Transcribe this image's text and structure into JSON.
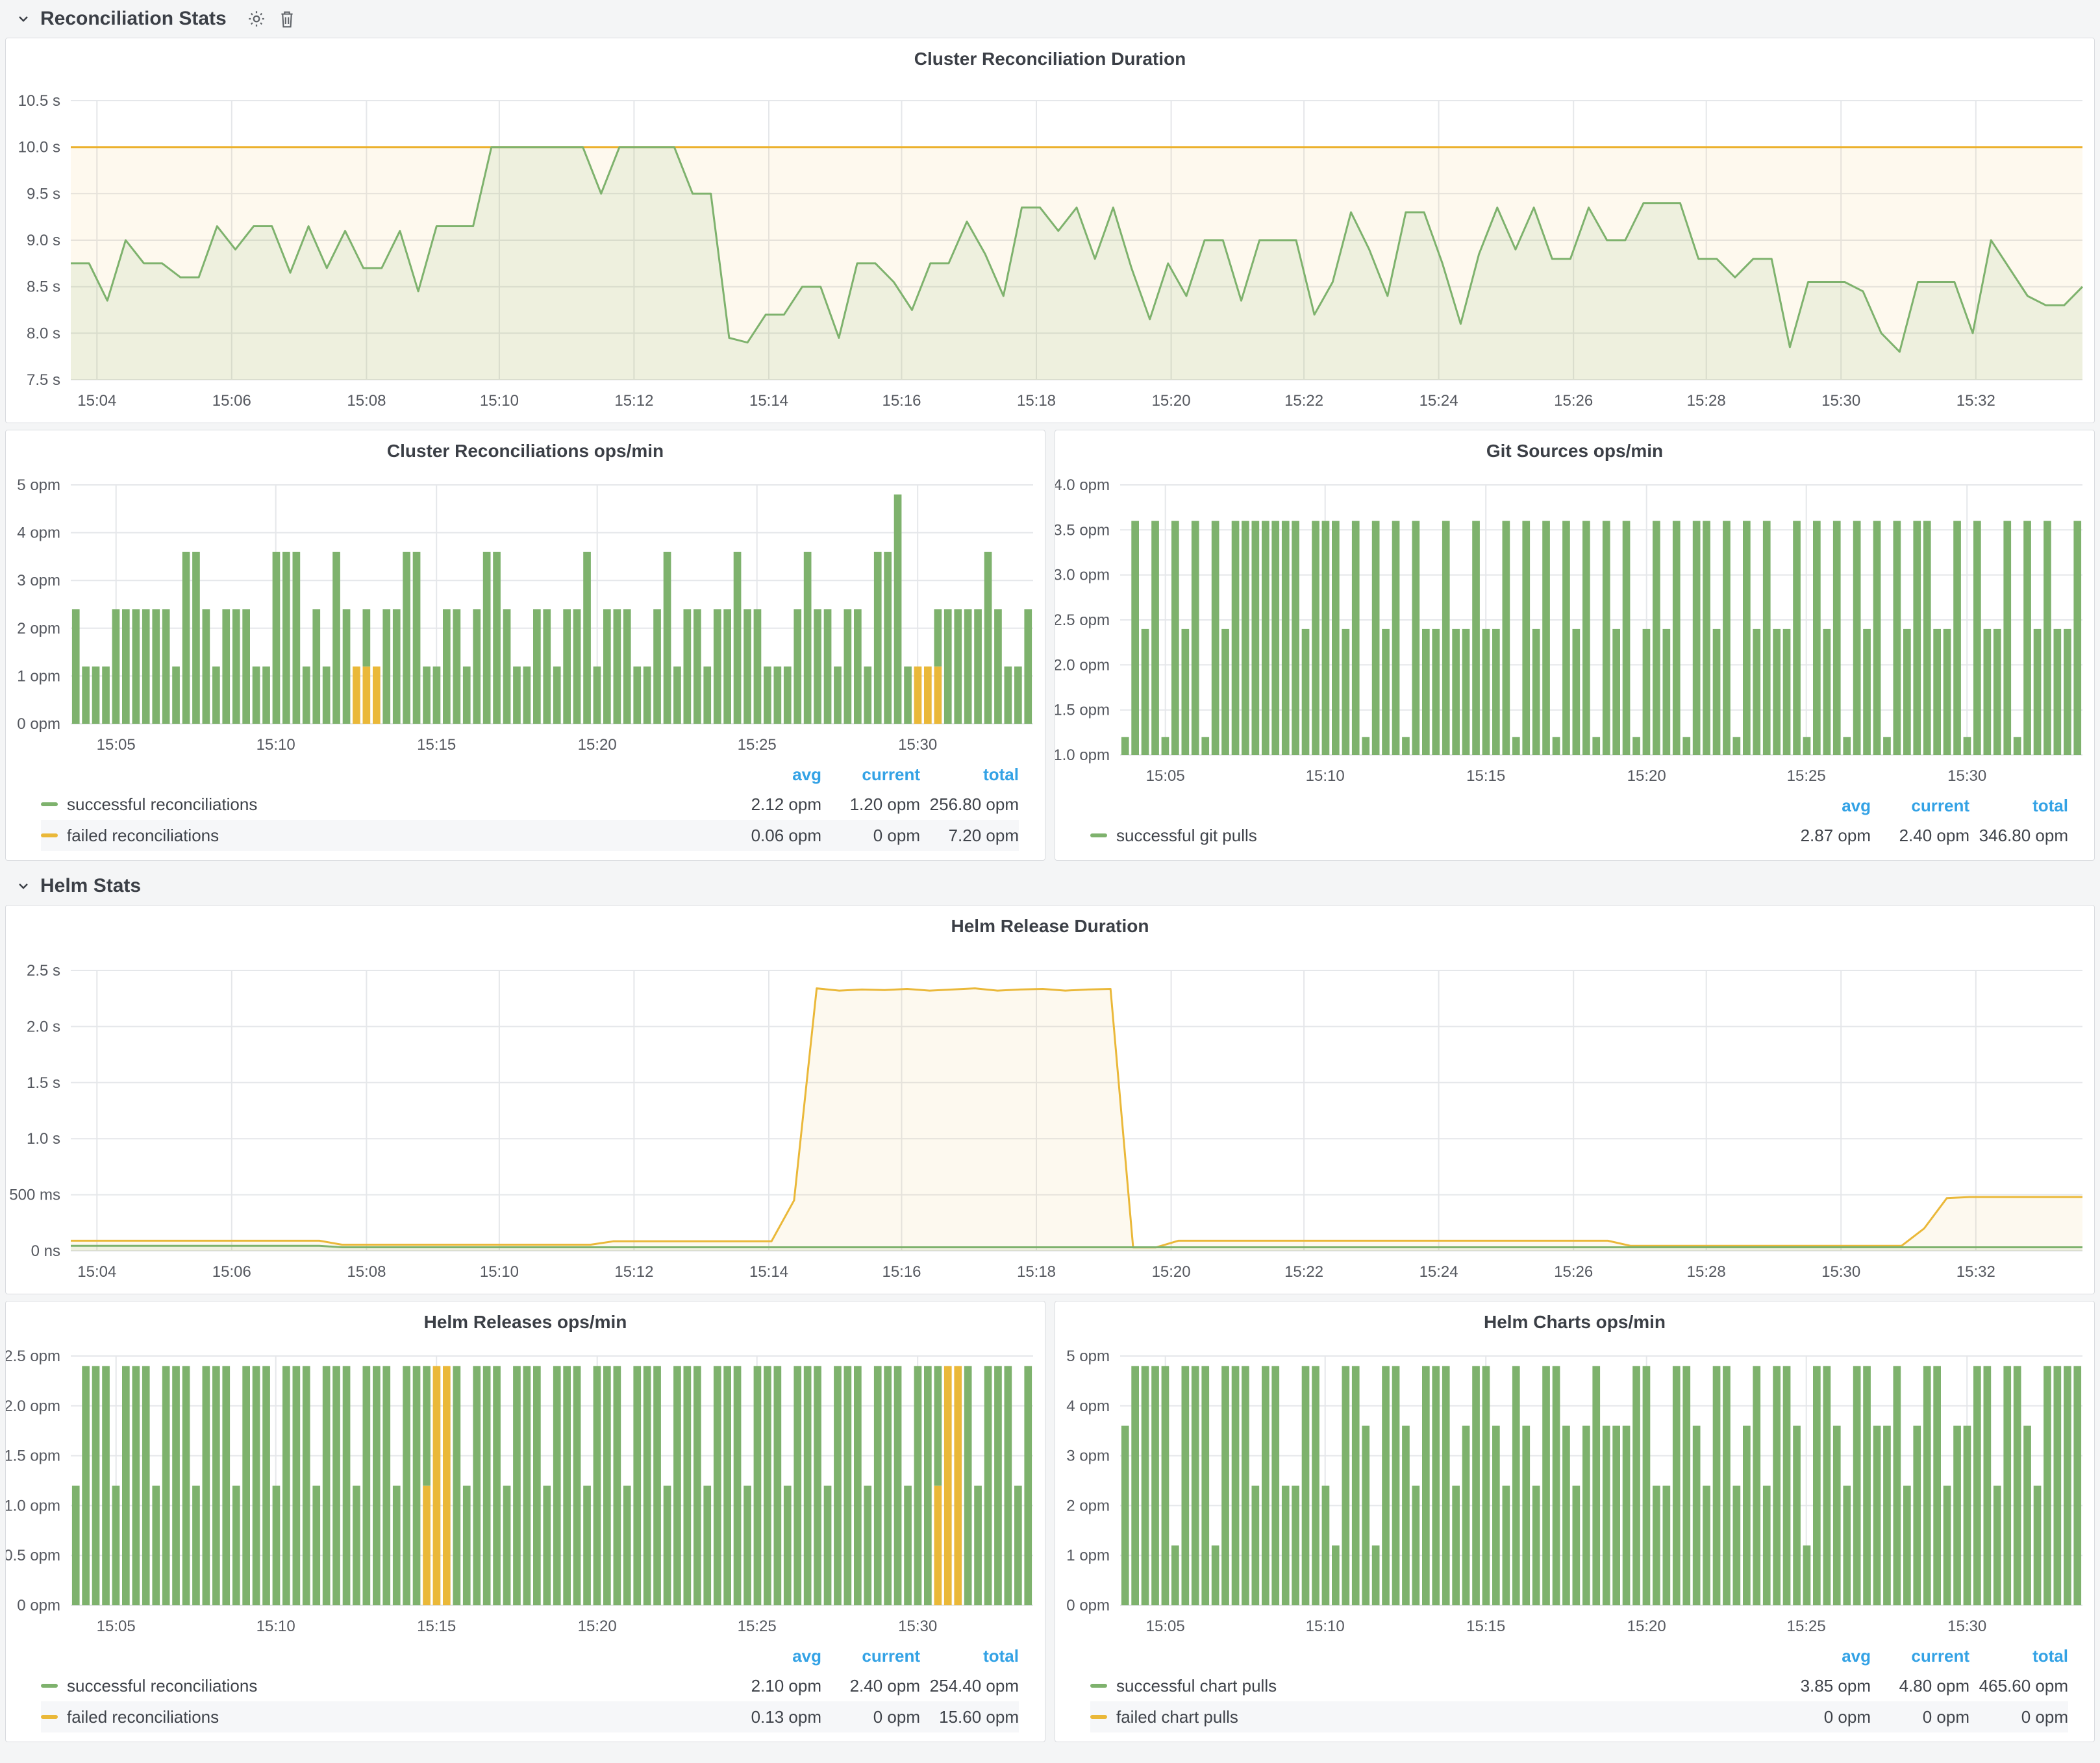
{
  "sections": [
    {
      "title": "Reconciliation Stats"
    },
    {
      "title": "Helm Stats"
    }
  ],
  "legend_headers": {
    "avg": "avg",
    "current": "current",
    "total": "total"
  },
  "colors": {
    "green": "#7eb26d",
    "orange": "#eab839",
    "threshold_orange": "#ecb12c",
    "link_blue": "#33a2e5"
  },
  "chart_data": [
    {
      "type": "line",
      "title": "Cluster Reconciliation Duration",
      "ylabel": "",
      "xlabel": "",
      "ylim": [
        7.5,
        10.5
      ],
      "mt": 46,
      "mb": 66,
      "grid": true,
      "y_ticks": [
        {
          "label": "7.5 s",
          "v": 7.5
        },
        {
          "label": "8.0 s",
          "v": 8.0
        },
        {
          "label": "8.5 s",
          "v": 8.5
        },
        {
          "label": "9.0 s",
          "v": 9.0
        },
        {
          "label": "9.5 s",
          "v": 9.5
        },
        {
          "label": "10.0 s",
          "v": 10.0
        },
        {
          "label": "10.5 s",
          "v": 10.5
        }
      ],
      "x_ticks": [
        {
          "label": "15:04",
          "f": 0.013
        },
        {
          "label": "15:06",
          "f": 0.08
        },
        {
          "label": "15:08",
          "f": 0.147
        },
        {
          "label": "15:10",
          "f": 0.213
        },
        {
          "label": "15:12",
          "f": 0.28
        },
        {
          "label": "15:14",
          "f": 0.347
        },
        {
          "label": "15:16",
          "f": 0.413
        },
        {
          "label": "15:18",
          "f": 0.48
        },
        {
          "label": "15:20",
          "f": 0.547
        },
        {
          "label": "15:22",
          "f": 0.613
        },
        {
          "label": "15:24",
          "f": 0.68
        },
        {
          "label": "15:26",
          "f": 0.747
        },
        {
          "label": "15:28",
          "f": 0.813
        },
        {
          "label": "15:30",
          "f": 0.88
        },
        {
          "label": "15:32",
          "f": 0.947
        }
      ],
      "series": [
        {
          "color": "#ecb12c",
          "fill_opacity": 0.08,
          "runs": [
            [
              10.0,
              2
            ]
          ]
        },
        {
          "color": "#7eb26d",
          "fill_opacity": 0.12,
          "values": [
            8.75,
            8.75,
            8.35,
            9.0,
            8.75,
            8.75,
            8.6,
            8.6,
            9.15,
            8.9,
            9.15,
            9.15,
            8.65,
            9.15,
            8.7,
            9.1,
            8.7,
            8.7,
            9.1,
            8.45,
            9.15,
            9.15,
            9.15,
            10.0,
            10.0,
            10.0,
            10.0,
            10.0,
            10.0,
            9.5,
            10.0,
            10.0,
            10.0,
            10.0,
            9.5,
            9.5,
            7.95,
            7.9,
            8.2,
            8.2,
            8.5,
            8.5,
            7.95,
            8.75,
            8.75,
            8.55,
            8.25,
            8.75,
            8.75,
            9.2,
            8.85,
            8.4,
            9.35,
            9.35,
            9.1,
            9.35,
            8.8,
            9.35,
            8.7,
            8.15,
            8.75,
            8.4,
            9.0,
            9.0,
            8.35,
            9.0,
            9.0,
            9.0,
            8.2,
            8.55,
            9.3,
            8.9,
            8.4,
            9.3,
            9.3,
            8.75,
            8.1,
            8.85,
            9.35,
            8.9,
            9.35,
            8.8,
            8.8,
            9.35,
            9.0,
            9.0,
            9.4,
            9.4,
            9.4,
            8.8,
            8.8,
            8.6,
            8.8,
            8.8,
            7.85,
            8.55,
            8.55,
            8.55,
            8.45,
            8.0,
            7.8,
            8.55,
            8.55,
            8.55,
            8.0,
            9.0,
            8.7,
            8.4,
            8.3,
            8.3,
            8.5
          ]
        }
      ]
    },
    {
      "type": "bar",
      "title": "Cluster Reconciliations ops/min",
      "ylabel": "",
      "xlabel": "",
      "ylim": [
        0,
        5
      ],
      "mt": 34,
      "mb": 52,
      "grid": true,
      "y_ticks": [
        {
          "label": "0 opm",
          "v": 0
        },
        {
          "label": "1 opm",
          "v": 1
        },
        {
          "label": "2 opm",
          "v": 2
        },
        {
          "label": "3 opm",
          "v": 3
        },
        {
          "label": "4 opm",
          "v": 4
        },
        {
          "label": "5 opm",
          "v": 5
        }
      ],
      "x_ticks": [
        {
          "label": "15:05",
          "f": 0.047
        },
        {
          "label": "15:10",
          "f": 0.213
        },
        {
          "label": "15:15",
          "f": 0.38
        },
        {
          "label": "15:20",
          "f": 0.547
        },
        {
          "label": "15:25",
          "f": 0.713
        },
        {
          "label": "15:30",
          "f": 0.88
        }
      ],
      "bars": [
        2.4,
        1.2,
        1.2,
        1.2,
        2.4,
        2.4,
        2.4,
        2.4,
        2.4,
        2.4,
        1.2,
        3.6,
        3.6,
        2.4,
        1.2,
        2.4,
        2.4,
        2.4,
        1.2,
        1.2,
        3.6,
        3.6,
        3.6,
        1.2,
        2.4,
        1.2,
        3.6,
        2.4,
        [
          0,
          1.2
        ],
        [
          1.2,
          1.2
        ],
        [
          0,
          1.2
        ],
        2.4,
        2.4,
        3.6,
        3.6,
        1.2,
        1.2,
        2.4,
        2.4,
        1.2,
        2.4,
        3.6,
        3.6,
        2.4,
        1.2,
        1.2,
        2.4,
        2.4,
        1.2,
        2.4,
        2.4,
        3.6,
        1.2,
        2.4,
        2.4,
        2.4,
        1.2,
        1.2,
        2.4,
        3.6,
        1.2,
        2.4,
        2.4,
        1.2,
        2.4,
        2.4,
        3.6,
        2.4,
        2.4,
        1.2,
        1.2,
        1.2,
        2.4,
        3.6,
        2.4,
        2.4,
        1.2,
        2.4,
        2.4,
        1.2,
        3.6,
        3.6,
        4.8,
        1.2,
        [
          0,
          1.2
        ],
        [
          0,
          1.2
        ],
        [
          1.2,
          1.2
        ],
        2.4,
        2.4,
        2.4,
        2.4,
        3.6,
        2.4,
        1.2,
        1.2,
        2.4
      ],
      "legend": [
        {
          "name": "successful reconciliations",
          "color": "green",
          "avg": "2.12 opm",
          "current": "1.20 opm",
          "total": "256.80 opm"
        },
        {
          "name": "failed reconciliations",
          "color": "orange",
          "avg": "0.06 opm",
          "current": "0 opm",
          "total": "7.20 opm"
        }
      ]
    },
    {
      "type": "bar",
      "title": "Git Sources ops/min",
      "ylabel": "",
      "xlabel": "",
      "ylim": [
        1.0,
        4.0
      ],
      "mt": 34,
      "mb": 52,
      "grid": true,
      "y_ticks": [
        {
          "label": "1.0 opm",
          "v": 1.0
        },
        {
          "label": "1.5 opm",
          "v": 1.5
        },
        {
          "label": "2.0 opm",
          "v": 2.0
        },
        {
          "label": "2.5 opm",
          "v": 2.5
        },
        {
          "label": "3.0 opm",
          "v": 3.0
        },
        {
          "label": "3.5 opm",
          "v": 3.5
        },
        {
          "label": "4.0 opm",
          "v": 4.0
        }
      ],
      "x_ticks": [
        {
          "label": "15:05",
          "f": 0.047
        },
        {
          "label": "15:10",
          "f": 0.213
        },
        {
          "label": "15:15",
          "f": 0.38
        },
        {
          "label": "15:20",
          "f": 0.547
        },
        {
          "label": "15:25",
          "f": 0.713
        },
        {
          "label": "15:30",
          "f": 0.88
        }
      ],
      "bars": [
        1.2,
        3.6,
        2.4,
        3.6,
        1.2,
        3.6,
        2.4,
        3.6,
        1.2,
        3.6,
        2.4,
        3.6,
        3.6,
        3.6,
        3.6,
        3.6,
        3.6,
        3.6,
        2.4,
        3.6,
        3.6,
        3.6,
        2.4,
        3.6,
        1.2,
        3.6,
        2.4,
        3.6,
        1.2,
        3.6,
        2.4,
        2.4,
        3.6,
        2.4,
        2.4,
        3.6,
        2.4,
        2.4,
        3.6,
        1.2,
        3.6,
        2.4,
        3.6,
        1.2,
        3.6,
        2.4,
        3.6,
        1.2,
        3.6,
        2.4,
        3.6,
        1.2,
        2.4,
        3.6,
        2.4,
        3.6,
        1.2,
        3.6,
        3.6,
        2.4,
        3.6,
        1.2,
        3.6,
        2.4,
        3.6,
        2.4,
        2.4,
        3.6,
        1.2,
        3.6,
        2.4,
        3.6,
        1.2,
        3.6,
        2.4,
        3.6,
        1.2,
        3.6,
        2.4,
        3.6,
        3.6,
        2.4,
        2.4,
        3.6,
        1.2,
        3.6,
        2.4,
        2.4,
        3.6,
        1.2,
        3.6,
        2.4,
        3.6,
        2.4,
        2.4,
        3.6
      ],
      "legend": [
        {
          "name": "successful git pulls",
          "color": "green",
          "avg": "2.87 opm",
          "current": "2.40 opm",
          "total": "346.80 opm"
        }
      ]
    },
    {
      "type": "line",
      "title": "Helm Release Duration",
      "ylabel": "",
      "xlabel": "",
      "ylim": [
        0,
        2500
      ],
      "mt": 50,
      "mb": 66,
      "grid": true,
      "y_ticks": [
        {
          "label": "0 ns",
          "v": 0
        },
        {
          "label": "500 ms",
          "v": 500
        },
        {
          "label": "1.0 s",
          "v": 1000
        },
        {
          "label": "1.5 s",
          "v": 1500
        },
        {
          "label": "2.0 s",
          "v": 2000
        },
        {
          "label": "2.5 s",
          "v": 2500
        }
      ],
      "x_ticks": [
        {
          "label": "15:04",
          "f": 0.013
        },
        {
          "label": "15:06",
          "f": 0.08
        },
        {
          "label": "15:08",
          "f": 0.147
        },
        {
          "label": "15:10",
          "f": 0.213
        },
        {
          "label": "15:12",
          "f": 0.28
        },
        {
          "label": "15:14",
          "f": 0.347
        },
        {
          "label": "15:16",
          "f": 0.413
        },
        {
          "label": "15:18",
          "f": 0.48
        },
        {
          "label": "15:20",
          "f": 0.547
        },
        {
          "label": "15:22",
          "f": 0.613
        },
        {
          "label": "15:24",
          "f": 0.68
        },
        {
          "label": "15:26",
          "f": 0.747
        },
        {
          "label": "15:28",
          "f": 0.813
        },
        {
          "label": "15:30",
          "f": 0.88
        },
        {
          "label": "15:32",
          "f": 0.947
        }
      ],
      "series": [
        {
          "color": "#eab839",
          "fill_opacity": 0.08,
          "runs": [
            [
              90,
              12
            ],
            [
              55,
              12
            ],
            [
              85,
              8
            ],
            [
              450,
              1
            ],
            [
              2340,
              1
            ],
            [
              2320,
              1
            ],
            [
              2330,
              1
            ],
            [
              2325,
              1
            ],
            [
              2335,
              1
            ],
            [
              2320,
              1
            ],
            [
              2330,
              1
            ],
            [
              2340,
              1
            ],
            [
              2320,
              1
            ],
            [
              2330,
              1
            ],
            [
              2335,
              1
            ],
            [
              2320,
              1
            ],
            [
              2330,
              1
            ],
            [
              2335,
              1
            ],
            [
              30,
              2
            ],
            [
              90,
              20
            ],
            [
              45,
              13
            ],
            [
              200,
              1
            ],
            [
              470,
              1
            ],
            [
              480,
              6
            ]
          ]
        },
        {
          "color": "#7eb26d",
          "fill_opacity": 0.1,
          "runs": [
            [
              45,
              12
            ],
            [
              32,
              78
            ]
          ]
        }
      ]
    },
    {
      "type": "bar",
      "title": "Helm Releases ops/min",
      "ylabel": "",
      "xlabel": "",
      "ylim": [
        0,
        2.5
      ],
      "mt": 34,
      "mb": 52,
      "grid": true,
      "y_ticks": [
        {
          "label": "0 opm",
          "v": 0
        },
        {
          "label": "0.5 opm",
          "v": 0.5
        },
        {
          "label": "1.0 opm",
          "v": 1.0
        },
        {
          "label": "1.5 opm",
          "v": 1.5
        },
        {
          "label": "2.0 opm",
          "v": 2.0
        },
        {
          "label": "2.5 opm",
          "v": 2.5
        }
      ],
      "x_ticks": [
        {
          "label": "15:05",
          "f": 0.047
        },
        {
          "label": "15:10",
          "f": 0.213
        },
        {
          "label": "15:15",
          "f": 0.38
        },
        {
          "label": "15:20",
          "f": 0.547
        },
        {
          "label": "15:25",
          "f": 0.713
        },
        {
          "label": "15:30",
          "f": 0.88
        }
      ],
      "bars": [
        1.2,
        2.4,
        2.4,
        2.4,
        1.2,
        2.4,
        2.4,
        2.4,
        1.2,
        2.4,
        2.4,
        2.4,
        1.2,
        2.4,
        2.4,
        2.4,
        1.2,
        2.4,
        2.4,
        2.4,
        1.2,
        2.4,
        2.4,
        2.4,
        1.2,
        2.4,
        2.4,
        2.4,
        1.2,
        2.4,
        2.4,
        2.4,
        1.2,
        2.4,
        2.4,
        [
          1.2,
          1.2
        ],
        [
          0,
          2.4
        ],
        [
          0,
          2.4
        ],
        2.4,
        1.2,
        2.4,
        2.4,
        2.4,
        1.2,
        2.4,
        2.4,
        2.4,
        1.2,
        2.4,
        2.4,
        2.4,
        1.2,
        2.4,
        2.4,
        2.4,
        1.2,
        2.4,
        2.4,
        2.4,
        1.2,
        2.4,
        2.4,
        2.4,
        1.2,
        2.4,
        2.4,
        2.4,
        1.2,
        2.4,
        2.4,
        2.4,
        1.2,
        2.4,
        2.4,
        2.4,
        1.2,
        2.4,
        2.4,
        2.4,
        1.2,
        2.4,
        2.4,
        2.4,
        1.2,
        2.4,
        2.4,
        [
          1.2,
          1.2
        ],
        [
          0,
          2.4
        ],
        [
          0,
          2.4
        ],
        2.4,
        1.2,
        2.4,
        2.4,
        2.4,
        1.2,
        2.4
      ],
      "legend": [
        {
          "name": "successful reconciliations",
          "color": "green",
          "avg": "2.10 opm",
          "current": "2.40 opm",
          "total": "254.40 opm"
        },
        {
          "name": "failed reconciliations",
          "color": "orange",
          "avg": "0.13 opm",
          "current": "0 opm",
          "total": "15.60 opm"
        }
      ]
    },
    {
      "type": "bar",
      "title": "Helm Charts ops/min",
      "ylabel": "",
      "xlabel": "",
      "ylim": [
        0,
        5
      ],
      "mt": 34,
      "mb": 52,
      "grid": true,
      "y_ticks": [
        {
          "label": "0 opm",
          "v": 0
        },
        {
          "label": "1 opm",
          "v": 1
        },
        {
          "label": "2 opm",
          "v": 2
        },
        {
          "label": "3 opm",
          "v": 3
        },
        {
          "label": "4 opm",
          "v": 4
        },
        {
          "label": "5 opm",
          "v": 5
        }
      ],
      "x_ticks": [
        {
          "label": "15:05",
          "f": 0.047
        },
        {
          "label": "15:10",
          "f": 0.213
        },
        {
          "label": "15:15",
          "f": 0.38
        },
        {
          "label": "15:20",
          "f": 0.547
        },
        {
          "label": "15:25",
          "f": 0.713
        },
        {
          "label": "15:30",
          "f": 0.88
        }
      ],
      "bars": [
        3.6,
        4.8,
        4.8,
        4.8,
        4.8,
        1.2,
        4.8,
        4.8,
        4.8,
        1.2,
        4.8,
        4.8,
        4.8,
        2.4,
        4.8,
        4.8,
        2.4,
        2.4,
        4.8,
        4.8,
        2.4,
        1.2,
        4.8,
        4.8,
        3.6,
        1.2,
        4.8,
        4.8,
        3.6,
        2.4,
        4.8,
        4.8,
        4.8,
        2.4,
        3.6,
        4.8,
        4.8,
        3.6,
        2.4,
        4.8,
        3.6,
        2.4,
        4.8,
        4.8,
        3.6,
        2.4,
        3.6,
        4.8,
        3.6,
        3.6,
        3.6,
        4.8,
        4.8,
        2.4,
        2.4,
        4.8,
        4.8,
        3.6,
        2.4,
        4.8,
        4.8,
        2.4,
        3.6,
        4.8,
        2.4,
        4.8,
        4.8,
        3.6,
        1.2,
        4.8,
        4.8,
        3.6,
        2.4,
        4.8,
        4.8,
        3.6,
        3.6,
        4.8,
        2.4,
        3.6,
        4.8,
        4.8,
        2.4,
        3.6,
        3.6,
        4.8,
        4.8,
        2.4,
        4.8,
        4.8,
        3.6,
        2.4,
        4.8,
        4.8,
        4.8,
        4.8
      ],
      "legend": [
        {
          "name": "successful chart pulls",
          "color": "green",
          "avg": "3.85 opm",
          "current": "4.80 opm",
          "total": "465.60 opm"
        },
        {
          "name": "failed chart pulls",
          "color": "orange",
          "avg": "0 opm",
          "current": "0 opm",
          "total": "0 opm"
        }
      ]
    }
  ]
}
